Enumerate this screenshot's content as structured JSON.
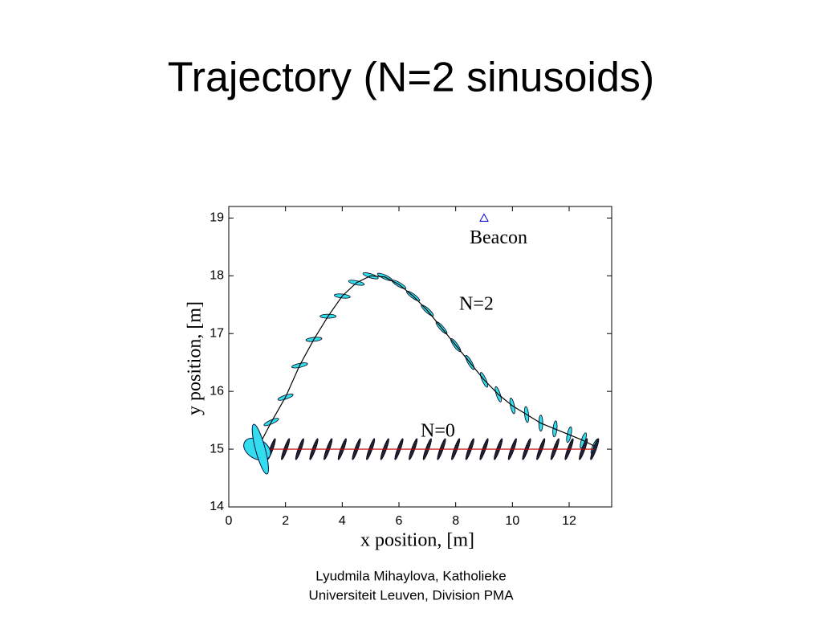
{
  "chart_data": {
    "type": "line",
    "title": "Trajectory (N=2 sinusoids)",
    "x_label": "x position, [m]",
    "y_label": "y position, [m]",
    "series": [
      {
        "name": "N=2",
        "color": "#000000",
        "x": [
          1,
          1.5,
          2,
          2.5,
          3,
          3.5,
          4,
          4.5,
          5,
          5.5,
          6,
          6.5,
          7,
          7.5,
          8,
          8.5,
          9,
          9.5,
          10,
          10.5,
          11,
          11.5,
          12,
          12.5,
          12.9
        ],
        "values": [
          15.0,
          15.47,
          15.9,
          16.45,
          16.9,
          17.3,
          17.65,
          17.88,
          18.0,
          17.98,
          17.85,
          17.65,
          17.4,
          17.1,
          16.8,
          16.5,
          16.2,
          15.95,
          15.75,
          15.6,
          15.45,
          15.35,
          15.25,
          15.15,
          15.05
        ]
      },
      {
        "name": "N=0",
        "color": "#c00000",
        "x": [
          1,
          1.5,
          2,
          2.5,
          3,
          3.5,
          4,
          4.5,
          5,
          5.5,
          6,
          6.5,
          7,
          7.5,
          8,
          8.5,
          9,
          9.5,
          10,
          10.5,
          11,
          11.5,
          12,
          12.5,
          12.9
        ],
        "values": [
          15,
          15,
          15,
          15,
          15,
          15,
          15,
          15,
          15,
          15,
          15,
          15,
          15,
          15,
          15,
          15,
          15,
          15,
          15,
          15,
          15,
          15,
          15,
          15,
          15
        ]
      }
    ],
    "beacon": {
      "label": "Beacon",
      "x": 9,
      "y": 19,
      "color": "#0000cc"
    },
    "xlim": [
      0,
      13.5
    ],
    "ylim": [
      14,
      19.2
    ],
    "xticks": [
      0,
      2,
      4,
      6,
      8,
      10,
      12
    ],
    "yticks": [
      14,
      15,
      16,
      17,
      18,
      19
    ]
  },
  "footer": [
    "Lyudmila Mihaylova, Katholieke",
    "Universiteit Leuven, Division PMA"
  ]
}
